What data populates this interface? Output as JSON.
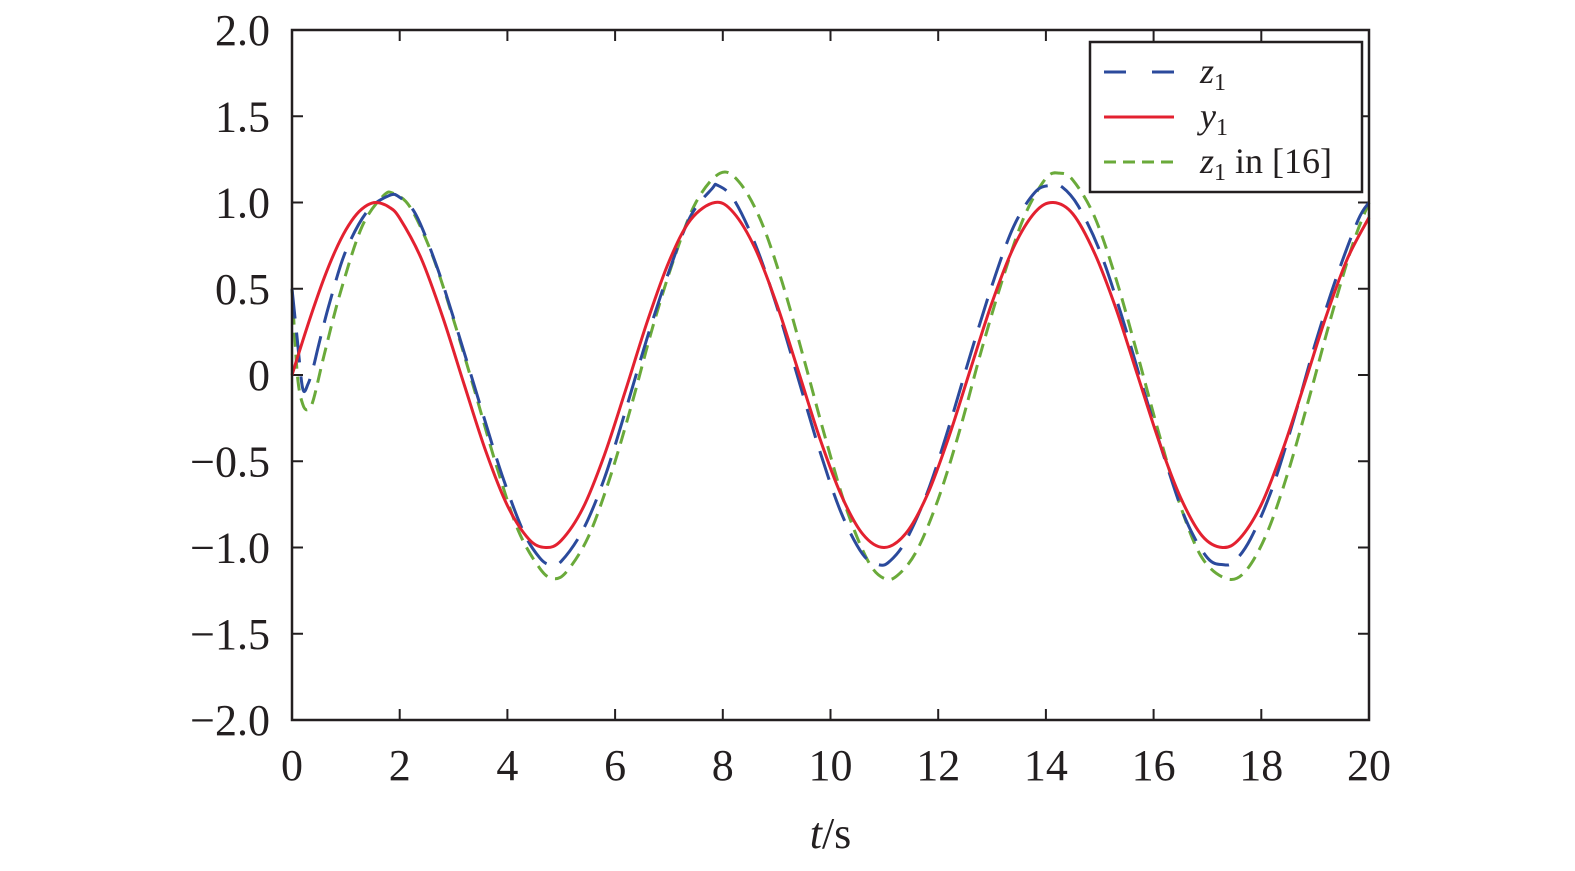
{
  "chart_data": {
    "type": "line",
    "title": "",
    "xlabel": {
      "italic": "t",
      "rest": "/s"
    },
    "ylabel": "",
    "xlim": [
      0,
      20
    ],
    "ylim": [
      -2.0,
      2.0
    ],
    "xticks": [
      0,
      2,
      4,
      6,
      8,
      10,
      12,
      14,
      16,
      18,
      20
    ],
    "xtick_labels": [
      "0",
      "2",
      "4",
      "6",
      "8",
      "10",
      "12",
      "14",
      "16",
      "18",
      "20"
    ],
    "yticks": [
      2.0,
      1.5,
      1.0,
      0.5,
      0,
      -0.5,
      -1.0,
      -1.5,
      -2.0
    ],
    "ytick_labels": [
      "2.0",
      "1.5",
      "1.0",
      "0.5",
      "0",
      "−0.5",
      "−1.0",
      "−1.5",
      "−2.0"
    ],
    "grid": false,
    "legend_position": "top-right",
    "series": [
      {
        "name": "z1",
        "legend": {
          "var": "z",
          "sub": "1",
          "suffix": ""
        },
        "color": "#2b4a9c",
        "style": "long-dash",
        "x": [
          0,
          0.1,
          0.2,
          0.3,
          0.4,
          0.5,
          0.7,
          1.0,
          1.4,
          1.8,
          2.0,
          2.3,
          2.7,
          3.1,
          3.5,
          3.9,
          4.3,
          4.6,
          4.8,
          5.0,
          5.4,
          5.8,
          6.2,
          6.6,
          7.0,
          7.4,
          7.8,
          7.9,
          8.2,
          8.6,
          9.0,
          9.4,
          9.8,
          10.2,
          10.6,
          10.9,
          11.1,
          11.4,
          11.8,
          12.2,
          12.6,
          13.0,
          13.4,
          13.8,
          14.1,
          14.3,
          14.6,
          15.0,
          15.4,
          15.8,
          16.2,
          16.6,
          17.0,
          17.3,
          17.5,
          17.8,
          18.2,
          18.6,
          19.0,
          19.4,
          19.8,
          20.0
        ],
        "y": [
          0.5,
          0.2,
          -0.08,
          -0.05,
          0.05,
          0.18,
          0.42,
          0.72,
          0.95,
          1.04,
          1.03,
          0.93,
          0.62,
          0.23,
          -0.18,
          -0.58,
          -0.91,
          -1.06,
          -1.1,
          -1.08,
          -0.9,
          -0.6,
          -0.2,
          0.22,
          0.6,
          0.92,
          1.08,
          1.1,
          1.02,
          0.76,
          0.4,
          -0.02,
          -0.44,
          -0.8,
          -1.04,
          -1.1,
          -1.08,
          -0.96,
          -0.68,
          -0.3,
          0.12,
          0.52,
          0.86,
          1.06,
          1.1,
          1.09,
          0.98,
          0.72,
          0.35,
          -0.07,
          -0.48,
          -0.84,
          -1.06,
          -1.1,
          -1.08,
          -0.95,
          -0.66,
          -0.26,
          0.18,
          0.57,
          0.9,
          1.0
        ]
      },
      {
        "name": "y1",
        "legend": {
          "var": "y",
          "sub": "1",
          "suffix": ""
        },
        "color": "#e32130",
        "style": "solid",
        "x": [
          0,
          0.2,
          0.4,
          0.6,
          0.8,
          1.0,
          1.2,
          1.4,
          1.571,
          1.8,
          2.0,
          2.4,
          2.8,
          3.2,
          3.6,
          4.0,
          4.4,
          4.712,
          5.0,
          5.4,
          5.8,
          6.2,
          6.6,
          7.0,
          7.4,
          7.854,
          8.2,
          8.6,
          9.0,
          9.4,
          9.8,
          10.2,
          10.6,
          10.996,
          11.4,
          11.8,
          12.2,
          12.6,
          13.0,
          13.4,
          13.8,
          14.137,
          14.5,
          14.9,
          15.3,
          15.7,
          16.1,
          16.5,
          16.9,
          17.279,
          17.6,
          18.0,
          18.4,
          18.8,
          19.2,
          19.6,
          20.0
        ],
        "y": [
          0,
          0.199,
          0.389,
          0.565,
          0.717,
          0.841,
          0.932,
          0.985,
          1.0,
          0.974,
          0.909,
          0.675,
          0.335,
          -0.058,
          -0.443,
          -0.757,
          -0.952,
          -1.0,
          -0.959,
          -0.773,
          -0.465,
          -0.083,
          0.312,
          0.657,
          0.899,
          1.0,
          0.941,
          0.734,
          0.412,
          0.025,
          -0.366,
          -0.697,
          -0.923,
          -1.0,
          -0.918,
          -0.693,
          -0.357,
          0.034,
          0.42,
          0.74,
          0.944,
          1.0,
          0.934,
          0.709,
          0.386,
          0.001,
          -0.384,
          -0.71,
          -0.932,
          -1.0,
          -0.948,
          -0.751,
          -0.432,
          -0.053,
          0.337,
          0.675,
          0.913
        ]
      },
      {
        "name": "z1 in [16]",
        "legend": {
          "var": "z",
          "sub": "1",
          "suffix": " in [16]"
        },
        "color": "#6aaa3a",
        "style": "short-dash",
        "x": [
          0,
          0.1,
          0.2,
          0.3,
          0.4,
          0.6,
          0.9,
          1.3,
          1.7,
          1.9,
          2.2,
          2.6,
          3.0,
          3.4,
          3.8,
          4.2,
          4.6,
          4.85,
          5.1,
          5.5,
          5.9,
          6.3,
          6.7,
          7.1,
          7.5,
          7.95,
          8.3,
          8.7,
          9.1,
          9.5,
          9.9,
          10.3,
          10.7,
          11.0,
          11.25,
          11.6,
          12.0,
          12.4,
          12.8,
          13.2,
          13.6,
          14.0,
          14.25,
          14.5,
          14.9,
          15.3,
          15.7,
          16.1,
          16.5,
          16.9,
          17.35,
          17.7,
          18.1,
          18.5,
          18.9,
          19.3,
          19.7,
          20.0
        ],
        "y": [
          0.5,
          0.0,
          -0.17,
          -0.2,
          -0.14,
          0.12,
          0.48,
          0.86,
          1.04,
          1.05,
          0.97,
          0.7,
          0.32,
          -0.1,
          -0.53,
          -0.9,
          -1.12,
          -1.18,
          -1.14,
          -0.94,
          -0.6,
          -0.18,
          0.28,
          0.68,
          1.0,
          1.17,
          1.12,
          0.9,
          0.54,
          0.1,
          -0.36,
          -0.78,
          -1.08,
          -1.18,
          -1.16,
          -1.02,
          -0.72,
          -0.32,
          0.14,
          0.56,
          0.92,
          1.14,
          1.17,
          1.13,
          0.92,
          0.56,
          0.12,
          -0.34,
          -0.76,
          -1.06,
          -1.18,
          -1.14,
          -0.92,
          -0.56,
          -0.12,
          0.34,
          0.76,
          1.0
        ]
      }
    ]
  }
}
